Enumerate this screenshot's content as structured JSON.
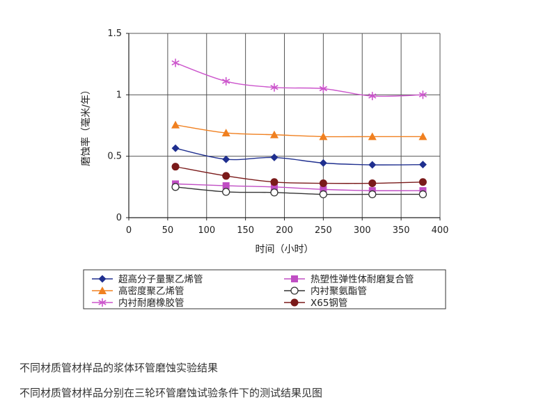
{
  "chart_data": {
    "type": "line",
    "xlabel": "时间（小时）",
    "ylabel": "磨蚀率（毫米/年）",
    "xlim": [
      0,
      400
    ],
    "ylim": [
      0,
      1.5
    ],
    "x_ticks": [
      "0",
      "50",
      "100",
      "150",
      "200",
      "250",
      "300",
      "350",
      "400"
    ],
    "y_ticks": [
      "0",
      "0.5",
      "1",
      "1.5"
    ],
    "grid": "vertical",
    "legend_position": "bottom",
    "x": [
      60,
      125,
      187,
      250,
      313,
      378
    ],
    "series": [
      {
        "name": "超高分子量聚乙烯管",
        "marker": "diamond",
        "color": "#1f2f8f",
        "values": [
          0.565,
          0.475,
          0.49,
          0.445,
          0.43,
          0.432
        ]
      },
      {
        "name": "热塑性弹性体耐磨复合管",
        "marker": "square",
        "color": "#c04ec4",
        "values": [
          0.275,
          0.26,
          0.25,
          0.23,
          0.22,
          0.22
        ]
      },
      {
        "name": "高密度聚乙烯管",
        "marker": "triangle",
        "color": "#f08020",
        "values": [
          0.755,
          0.69,
          0.675,
          0.66,
          0.66,
          0.66
        ]
      },
      {
        "name": "内衬聚氨酯管",
        "marker": "circle-open",
        "color": "#333333",
        "values": [
          0.25,
          0.21,
          0.205,
          0.19,
          0.19,
          0.19
        ]
      },
      {
        "name": "内衬耐磨橡胶管",
        "marker": "asterisk",
        "color": "#cc55cc",
        "values": [
          1.26,
          1.11,
          1.06,
          1.05,
          0.99,
          1.0
        ]
      },
      {
        "name": "X65钢管",
        "marker": "circle-filled",
        "color": "#7a1a1a",
        "values": [
          0.415,
          0.34,
          0.29,
          0.28,
          0.28,
          0.29
        ]
      }
    ]
  },
  "captions": {
    "line1": "不同材质管材样品的浆体环管磨蚀实验结果",
    "line2": "不同材质管材样品分别在三轮环管磨蚀试验条件下的测试结果见图"
  }
}
